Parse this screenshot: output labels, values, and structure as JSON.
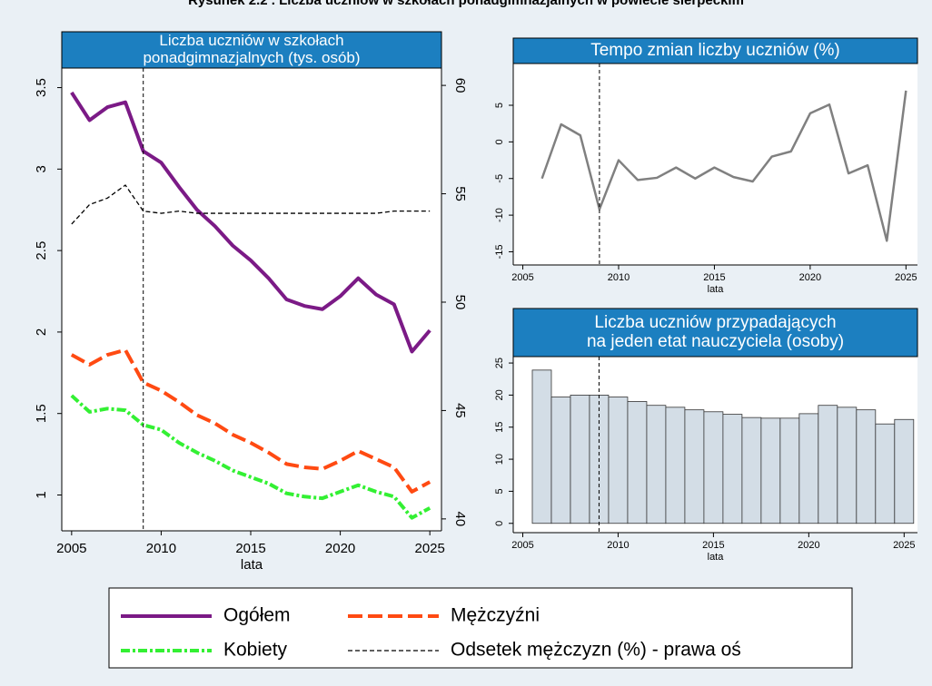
{
  "title": "Rysunek 2.2 . Liczba uczniów w szkołach ponadgimnazjalnych w powiecie sierpeckim",
  "chart_data": [
    {
      "type": "line",
      "title": [
        "Liczba uczniów w szkołach",
        "ponadgimnazjalnych (tys. osób)"
      ],
      "x_label": "lata",
      "x": [
        2005,
        2006,
        2007,
        2008,
        2009,
        2010,
        2011,
        2012,
        2013,
        2014,
        2015,
        2016,
        2017,
        2018,
        2019,
        2020,
        2021,
        2022,
        2023,
        2024,
        2025
      ],
      "series": [
        {
          "name": "Ogółem",
          "color": "#7b1a86",
          "line_style": "solid",
          "values": [
            3.47,
            3.3,
            3.38,
            3.41,
            3.11,
            3.04,
            2.89,
            2.75,
            2.65,
            2.53,
            2.44,
            2.33,
            2.2,
            2.16,
            2.14,
            2.22,
            2.33,
            2.23,
            2.17,
            1.88,
            2.01
          ]
        },
        {
          "name": "Mężczyźni",
          "color": "#ff4a12",
          "line_style": "dashed",
          "values": [
            1.86,
            1.8,
            1.86,
            1.89,
            1.69,
            1.64,
            1.57,
            1.49,
            1.44,
            1.37,
            1.32,
            1.26,
            1.19,
            1.17,
            1.16,
            1.21,
            1.27,
            1.22,
            1.17,
            1.02,
            1.08
          ]
        },
        {
          "name": "Kobiety",
          "color": "#33f033",
          "line_style": "dash-dot",
          "values": [
            1.61,
            1.51,
            1.53,
            1.52,
            1.43,
            1.4,
            1.32,
            1.26,
            1.21,
            1.15,
            1.11,
            1.07,
            1.01,
            0.99,
            0.98,
            1.02,
            1.06,
            1.02,
            0.99,
            0.86,
            0.92
          ]
        },
        {
          "name": "Odsetek mężczyzn (%) - prawa oś",
          "color": "#000000",
          "line_style": "short-dashed",
          "axis": "y2",
          "values": [
            53.6,
            54.5,
            54.8,
            55.4,
            54.2,
            54.1,
            54.2,
            54.1,
            54.1,
            54.1,
            54.1,
            54.1,
            54.1,
            54.1,
            54.1,
            54.1,
            54.1,
            54.1,
            54.2,
            54.2,
            54.2
          ]
        }
      ],
      "xlim": [
        2004.45,
        2025.65
      ],
      "xticks": [
        2005,
        2010,
        2015,
        2020,
        2025
      ],
      "ylim": [
        0.78,
        3.62
      ],
      "yticks": [
        1,
        1.5,
        2,
        2.5,
        3,
        3.5
      ],
      "y2lim": [
        39.45,
        60.8
      ],
      "y2ticks": [
        40,
        45,
        50,
        55,
        60
      ],
      "vline": 2009
    },
    {
      "type": "line",
      "title": [
        "Tempo zmian liczby uczniów (%)"
      ],
      "x_label": "lata",
      "x": [
        2006,
        2007,
        2008,
        2009,
        2010,
        2011,
        2012,
        2013,
        2014,
        2015,
        2016,
        2017,
        2018,
        2019,
        2020,
        2021,
        2022,
        2023,
        2024,
        2025
      ],
      "series": [
        {
          "name": "Tempo zmian",
          "color": "#808080",
          "line_style": "solid",
          "values": [
            -5.0,
            2.4,
            0.9,
            -9.2,
            -2.5,
            -5.2,
            -4.9,
            -3.5,
            -5.0,
            -3.5,
            -4.8,
            -5.4,
            -2.0,
            -1.3,
            3.9,
            5.1,
            -4.3,
            -3.2,
            -13.5,
            7.0
          ]
        }
      ],
      "xlim": [
        2004.5,
        2025.6
      ],
      "xticks": [
        2005,
        2010,
        2015,
        2020,
        2025
      ],
      "ylim": [
        -16.8,
        10.7
      ],
      "yticks": [
        -15,
        -10,
        -5,
        0,
        5
      ],
      "vline": 2009
    },
    {
      "type": "bar",
      "title": [
        "Liczba uczniów przypadających",
        "na jeden etat nauczyciela (osoby)"
      ],
      "x_label": "lata",
      "x": [
        2006,
        2007,
        2008,
        2009,
        2010,
        2011,
        2012,
        2013,
        2014,
        2015,
        2016,
        2017,
        2018,
        2019,
        2020,
        2021,
        2022,
        2023,
        2024,
        2025
      ],
      "values": [
        23.9,
        19.7,
        20.0,
        20.0,
        19.7,
        19.0,
        18.4,
        18.1,
        17.7,
        17.4,
        17.0,
        16.5,
        16.4,
        16.4,
        17.1,
        18.4,
        18.1,
        17.7,
        15.5,
        16.2
      ],
      "color": "#d3dde6",
      "xlim": [
        2004.5,
        2025.7
      ],
      "xticks": [
        2005,
        2010,
        2015,
        2020,
        2025
      ],
      "ylim": [
        -1.45,
        26
      ],
      "yticks": [
        0,
        5,
        10,
        15,
        20,
        25
      ],
      "vline": 2009
    }
  ]
}
